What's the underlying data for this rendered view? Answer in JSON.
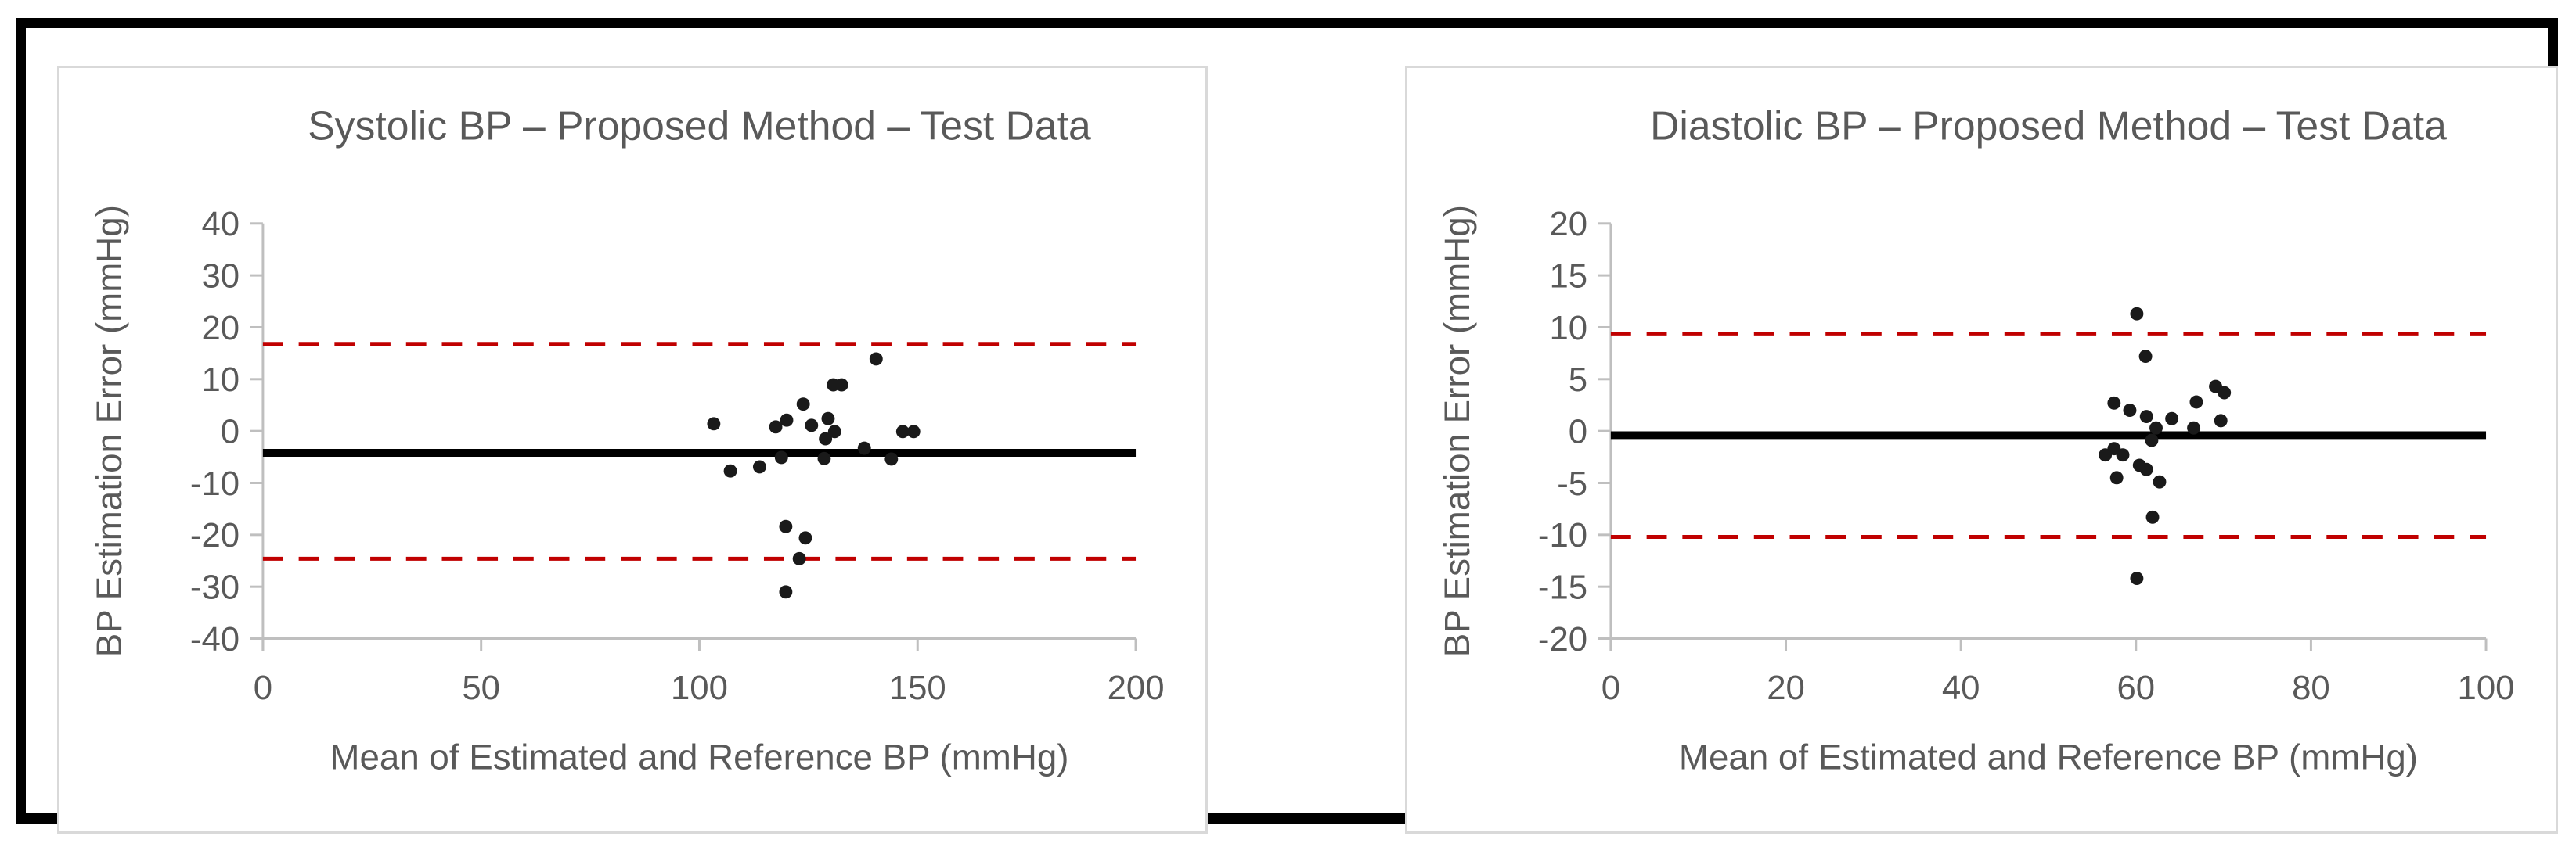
{
  "page": {
    "kind": "bland-altman-figure",
    "panel_count": 2
  },
  "styles": {
    "frame_color": "#000000",
    "panel_border_color": "#d9d9d9",
    "axis_line_color": "#bfbfbf",
    "tick_label_color": "#595959",
    "title_color": "#595959",
    "mean_line_color": "#000000",
    "loa_line_color": "#c00000",
    "point_color": "#1a1a1a"
  },
  "chart_data": [
    {
      "type": "scatter",
      "title": "Systolic BP – Proposed Method – Test Data",
      "xlabel": "Mean of Estimated and Reference BP (mmHg)",
      "ylabel": "BP Estimation Error (mmHg)",
      "xlim": [
        0,
        200
      ],
      "xtick_step": 50,
      "ylim": [
        -40,
        40
      ],
      "ytick_step": 10,
      "grid": false,
      "legend": "none",
      "mean_line": -4.2,
      "upper_loa": 16.8,
      "lower_loa": -24.6,
      "points": [
        [
          103.3,
          1.4
        ],
        [
          107.1,
          -7.7
        ],
        [
          113.8,
          -6.9
        ],
        [
          117.5,
          0.8
        ],
        [
          118.8,
          -5.1
        ],
        [
          119.8,
          -18.4
        ],
        [
          119.8,
          -31.0
        ],
        [
          120.0,
          2.1
        ],
        [
          122.9,
          -24.6
        ],
        [
          123.8,
          5.2
        ],
        [
          124.3,
          -20.6
        ],
        [
          125.7,
          1.1
        ],
        [
          128.6,
          -5.3
        ],
        [
          128.9,
          -1.5
        ],
        [
          129.5,
          2.4
        ],
        [
          130.7,
          8.9
        ],
        [
          131.0,
          -0.1
        ],
        [
          132.6,
          8.9
        ],
        [
          137.8,
          -3.3
        ],
        [
          140.5,
          13.9
        ],
        [
          144.0,
          -5.4
        ],
        [
          146.6,
          -0.1
        ],
        [
          149.1,
          -0.1
        ]
      ]
    },
    {
      "type": "scatter",
      "title": "Diastolic BP – Proposed Method – Test Data",
      "xlabel": "Mean of Estimated and Reference BP (mmHg)",
      "ylabel": "BP Estimation Error (mmHg)",
      "xlim": [
        0,
        100
      ],
      "xtick_step": 20,
      "ylim": [
        -20,
        20
      ],
      "ytick_step": 5,
      "grid": false,
      "legend": "none",
      "mean_line": -0.4,
      "upper_loa": 9.4,
      "lower_loa": -10.2,
      "points": [
        [
          56.5,
          -2.3
        ],
        [
          57.5,
          2.7
        ],
        [
          57.5,
          -1.7
        ],
        [
          57.8,
          -4.5
        ],
        [
          58.5,
          -2.3
        ],
        [
          59.3,
          2.0
        ],
        [
          60.1,
          11.3
        ],
        [
          60.1,
          -14.2
        ],
        [
          60.4,
          -3.3
        ],
        [
          61.1,
          7.2
        ],
        [
          61.2,
          1.4
        ],
        [
          61.2,
          -3.7
        ],
        [
          61.8,
          -0.9
        ],
        [
          61.9,
          -8.3
        ],
        [
          62.3,
          0.3
        ],
        [
          62.7,
          -4.9
        ],
        [
          64.1,
          1.2
        ],
        [
          66.6,
          0.3
        ],
        [
          66.9,
          2.8
        ],
        [
          69.1,
          4.3
        ],
        [
          69.7,
          1.0
        ],
        [
          70.1,
          3.7
        ]
      ]
    }
  ]
}
